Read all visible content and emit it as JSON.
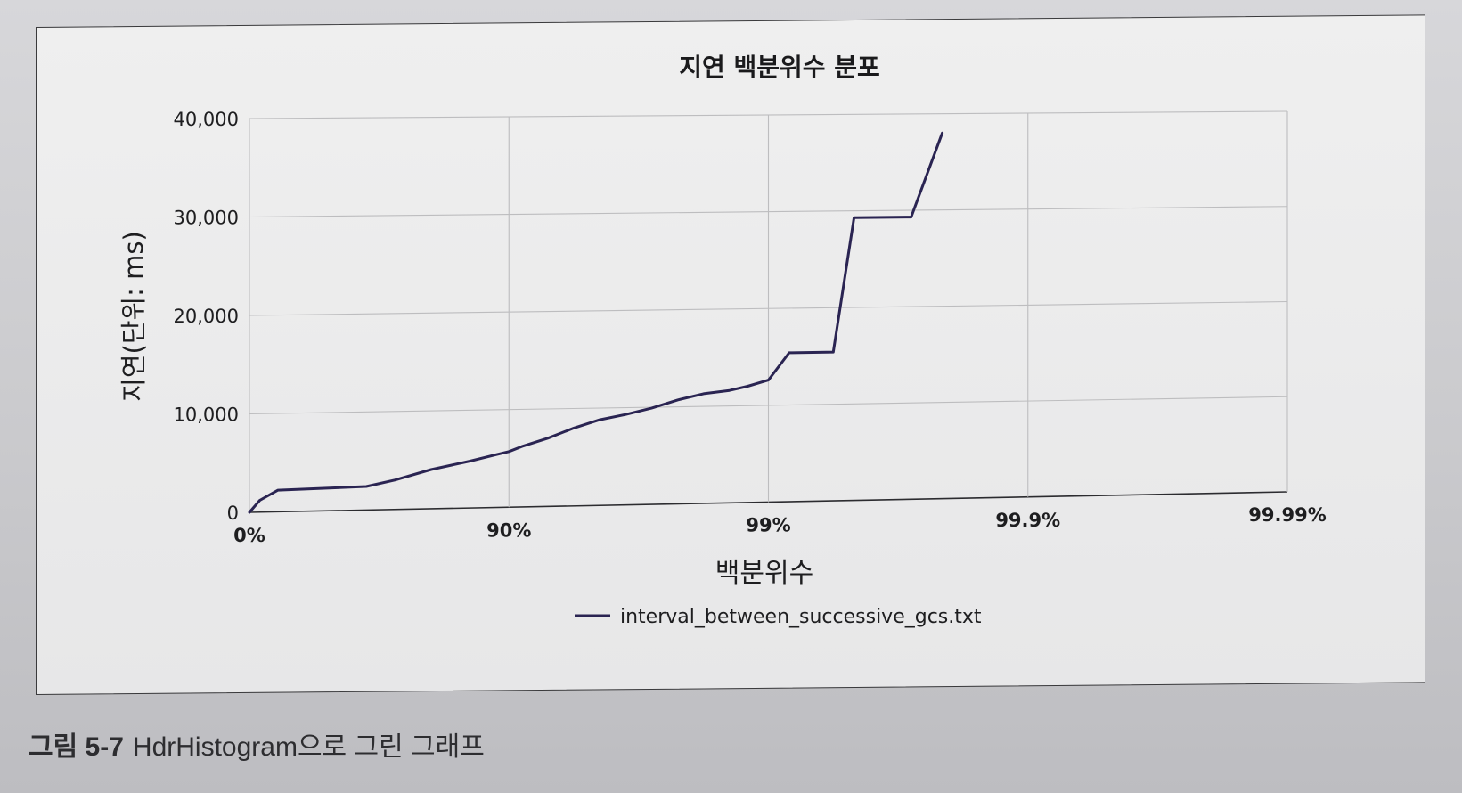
{
  "chart_data": {
    "type": "line",
    "title": "지연 백분위수 분포",
    "xlabel": "백분위수",
    "ylabel": "지연(단위: ms)",
    "x_ticks": [
      "0%",
      "90%",
      "99%",
      "99.9%",
      "99.99%"
    ],
    "y_ticks": [
      "0",
      "10,000",
      "20,000",
      "30,000",
      "40,000"
    ],
    "ylim": [
      0,
      40000
    ],
    "grid": true,
    "legend_position": "bottom-center",
    "series": [
      {
        "name": "interval_between_successive_gcs.txt",
        "color": "#2a2452",
        "points": [
          [
            0.0,
            0
          ],
          [
            0.04,
            1200
          ],
          [
            0.11,
            2200
          ],
          [
            0.45,
            2400
          ],
          [
            0.56,
            3000
          ],
          [
            0.7,
            4000
          ],
          [
            0.85,
            4800
          ],
          [
            0.95,
            5400
          ],
          [
            1.0,
            5700
          ],
          [
            1.05,
            6200
          ],
          [
            1.15,
            7000
          ],
          [
            1.25,
            8000
          ],
          [
            1.35,
            8800
          ],
          [
            1.45,
            9300
          ],
          [
            1.55,
            9900
          ],
          [
            1.65,
            10700
          ],
          [
            1.75,
            11300
          ],
          [
            1.85,
            11600
          ],
          [
            1.92,
            12000
          ],
          [
            2.0,
            12600
          ],
          [
            2.08,
            15400
          ],
          [
            2.25,
            15400
          ],
          [
            2.33,
            29300
          ],
          [
            2.55,
            29300
          ],
          [
            2.67,
            38000
          ]
        ]
      }
    ]
  },
  "caption": {
    "label": "그림 5-7",
    "text": "HdrHistogram으로 그린 그래프"
  }
}
